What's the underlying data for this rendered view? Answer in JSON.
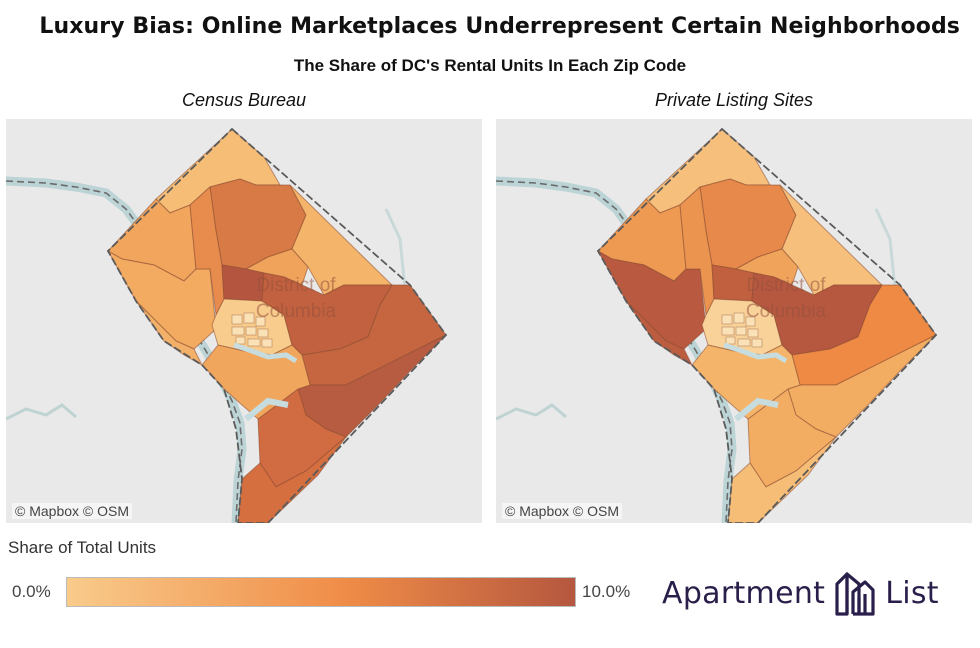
{
  "title": "Luxury Bias: Online Marketplaces Underrepresent Certain Neighborhoods",
  "subtitle": "The Share of DC's Rental Units In Each Zip Code",
  "map_label": "District of Columbia",
  "panels": [
    {
      "label": "Census Bureau",
      "attribution": "© Mapbox  © OSM",
      "region_colors": {
        "nw_tip": "#f6bd77",
        "nw_mid": "#f2a55d",
        "n_center": "#d87a45",
        "ne_top": "#f4b46a",
        "west": "#f3aa61",
        "west_lower": "#f3b068",
        "center_a": "#e88c4d",
        "center_b": "#f0a35b",
        "core": "#b4563f",
        "downtown": "#f8cc8c",
        "east_upper": "#c2613f",
        "east_mid": "#c56641",
        "se_upper": "#b85c41",
        "se_lower": "#d16b41",
        "south_tip": "#d66f40",
        "sw": "#f1a65e"
      }
    },
    {
      "label": "Private Listing Sites",
      "attribution": "© Mapbox  © OSM",
      "region_colors": {
        "nw_tip": "#f6c07c",
        "nw_mid": "#ef9a52",
        "n_center": "#e6894a",
        "ne_top": "#f6c07c",
        "west": "#b95a40",
        "west_lower": "#bd5d40",
        "center_a": "#eb9450",
        "center_b": "#f0a35b",
        "core": "#c0603f",
        "downtown": "#f9d29a",
        "east_upper": "#b65840",
        "east_mid": "#ee8a44",
        "se_upper": "#f3ad63",
        "se_lower": "#f3ad63",
        "south_tip": "#f6bd77",
        "sw": "#f4b46a"
      }
    }
  ],
  "legend": {
    "title": "Share of Total Units",
    "min_label": "0.0%",
    "max_label": "10.0%",
    "color_low": "#f9cb8b",
    "color_mid": "#ef8c47",
    "color_high": "#b5573f"
  },
  "logo": {
    "word1": "Apartment",
    "word2": "List",
    "color": "#2a1f4a",
    "icon": "building-icon"
  }
}
